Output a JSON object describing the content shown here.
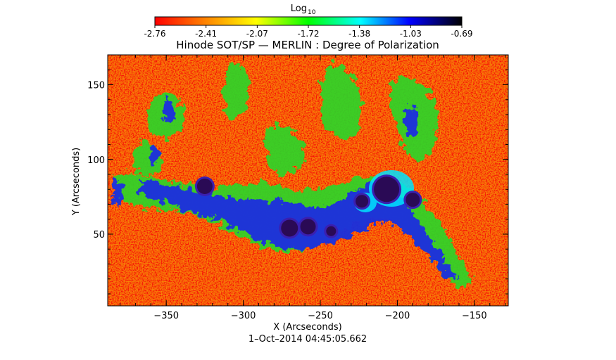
{
  "colorbar": {
    "label_main": "Log",
    "label_sub": "10",
    "ticks": [
      "-2.76",
      "-2.41",
      "-2.07",
      "-1.72",
      "-1.38",
      "-1.03",
      "-0.69"
    ],
    "stops": [
      "#ff0000",
      "#ff8800",
      "#ffff00",
      "#00ff00",
      "#00ffff",
      "#0000ff",
      "#000000"
    ]
  },
  "title": "Hinode SOT/SP — MERLIN : Degree of Polarization",
  "timestamp": "1–Oct–2014 04:45:05.662",
  "chart_data": {
    "type": "heatmap",
    "title": "Hinode SOT/SP — MERLIN : Degree of Polarization",
    "xlabel": "X (Arcseconds)",
    "ylabel": "Y (Arcseconds)",
    "x_ticks": [
      -350,
      -300,
      -250,
      -200,
      -150
    ],
    "y_ticks": [
      50,
      100,
      150
    ],
    "xlim": [
      -388,
      -128
    ],
    "ylim": [
      2,
      170
    ],
    "colorbar_range": [
      -2.76,
      -0.69
    ],
    "sunspots": [
      {
        "x": -207,
        "y": 80
      },
      {
        "x": -190,
        "y": 73
      },
      {
        "x": -223,
        "y": 72
      },
      {
        "x": -270,
        "y": 54
      },
      {
        "x": -258,
        "y": 55
      },
      {
        "x": -325,
        "y": 82
      },
      {
        "x": -243,
        "y": 52
      }
    ]
  },
  "colors": {
    "background_field": "#ee2a10",
    "axes": "#000000"
  }
}
